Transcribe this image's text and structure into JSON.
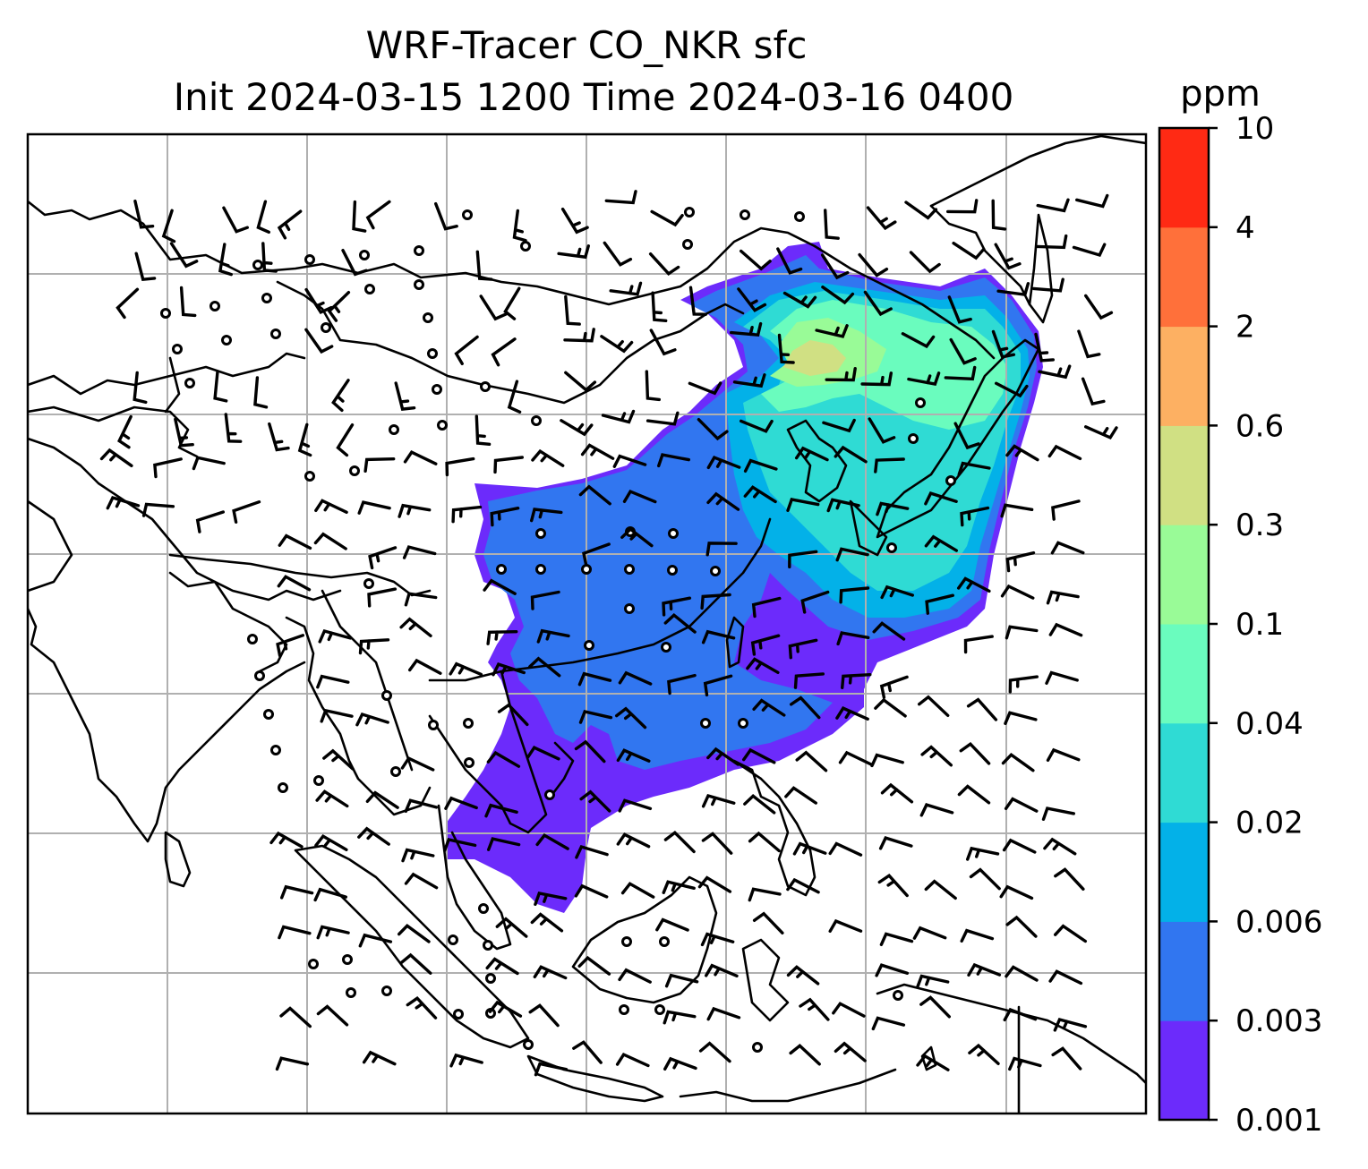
{
  "title_line1": "WRF-Tracer CO_NKR sfc",
  "title_line2": "Init 2024-03-15 1200 Time 2024-03-16 0400",
  "colorbar": {
    "unit": "ppm",
    "boundaries": [
      "0.001",
      "0.003",
      "0.006",
      "0.02",
      "0.04",
      "0.1",
      "0.3",
      "0.6",
      "2",
      "4",
      "10"
    ],
    "colors": [
      "#6c2bfb",
      "#3176f0",
      "#03b1e8",
      "#2fdbd4",
      "#6afcbe",
      "#99fb97",
      "#d0e083",
      "#fdb062",
      "#ff703a",
      "#ff2a14"
    ]
  },
  "map": {
    "grid_lines": "on",
    "features": [
      "coastlines",
      "country borders",
      "wind barbs",
      "tracer concentration shading"
    ]
  }
}
